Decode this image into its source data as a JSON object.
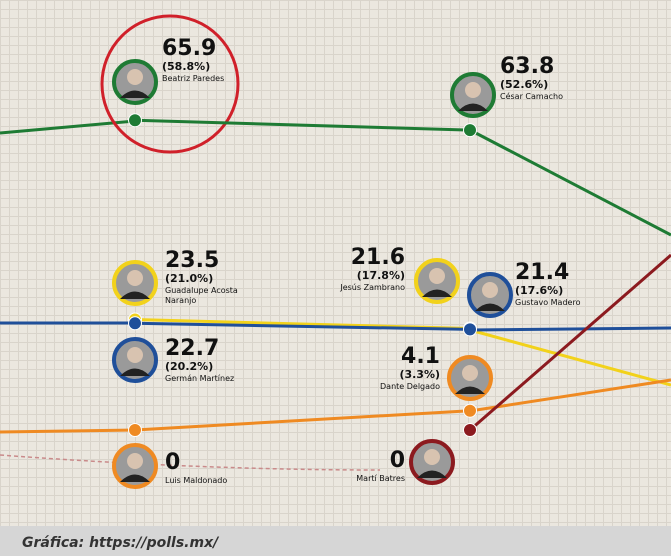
{
  "chart_data": {
    "type": "line",
    "categories": [
      null,
      null
    ],
    "ylim": [
      0,
      70
    ],
    "series": [
      {
        "color": "#1e7b34",
        "values": [
          65.9,
          63.8
        ],
        "shares": [
          "(58.8%)",
          "(52.6%)"
        ],
        "names": [
          "Beatriz Paredes",
          "César Camacho"
        ]
      },
      {
        "color": "#f2d21b",
        "values": [
          23.5,
          21.6
        ],
        "shares": [
          "(21.0%)",
          "(17.8%)"
        ],
        "names": [
          "Guadalupe Acosta Naranjo",
          "Jesús Zambrano"
        ]
      },
      {
        "color": "#1f4f9a",
        "values": [
          22.7,
          21.4
        ],
        "shares": [
          "(20.2%)",
          "(17.6%)"
        ],
        "names": [
          "Germán Martínez",
          "Gustavo Madero"
        ]
      },
      {
        "color": "#ef8a22",
        "values": [
          0,
          4.1
        ],
        "shares": [
          null,
          "(3.3%)"
        ],
        "names": [
          "Luis Maldonado",
          "Dante Delgado"
        ]
      },
      {
        "color": "#8c1a1f",
        "values": [
          null,
          0
        ],
        "shares": [
          null,
          null
        ],
        "names": [
          null,
          "Martí Batres"
        ]
      }
    ],
    "source": "Gráfica: https://polls.mx/"
  }
}
